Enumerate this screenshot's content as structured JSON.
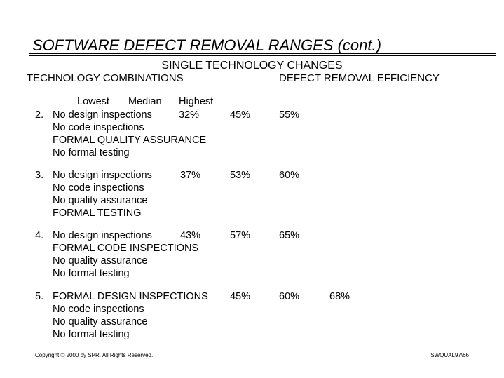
{
  "header": {
    "title": "SOFTWARE DEFECT REMOVAL RANGES (cont.)",
    "subtitle": "SINGLE TECHNOLOGY CHANGES",
    "left_heading": "TECHNOLOGY COMBINATIONS",
    "right_heading": "DEFECT REMOVAL EFFICIENCY"
  },
  "columns": [
    "Lowest",
    "Median",
    "Highest"
  ],
  "rows": [
    {
      "number": "2.",
      "lines": [
        "No design inspections",
        "No code inspections",
        "FORMAL QUALITY ASSURANCE",
        "No formal testing"
      ],
      "values": [
        "32%",
        "45%",
        "55%"
      ]
    },
    {
      "number": "3.",
      "lines": [
        "No design inspections",
        "No code inspections",
        "No quality assurance",
        "FORMAL TESTING"
      ],
      "values": [
        "37%",
        "53%",
        "60%"
      ]
    },
    {
      "number": "4.",
      "lines": [
        "No design inspections",
        "FORMAL CODE INSPECTIONS",
        "No quality assurance",
        "No formal testing"
      ],
      "values": [
        "43%",
        "57%",
        "65%"
      ]
    },
    {
      "number": "5.",
      "lines": [
        "FORMAL DESIGN INSPECTIONS",
        "No code inspections",
        "No quality assurance",
        "No formal testing"
      ],
      "values": [
        "45%",
        "60%",
        "68%"
      ]
    }
  ],
  "footer": {
    "copyright": "Copyright © 2000 by SPR.  All Rights Reserved.",
    "code": "SWQUAL97\\66"
  }
}
